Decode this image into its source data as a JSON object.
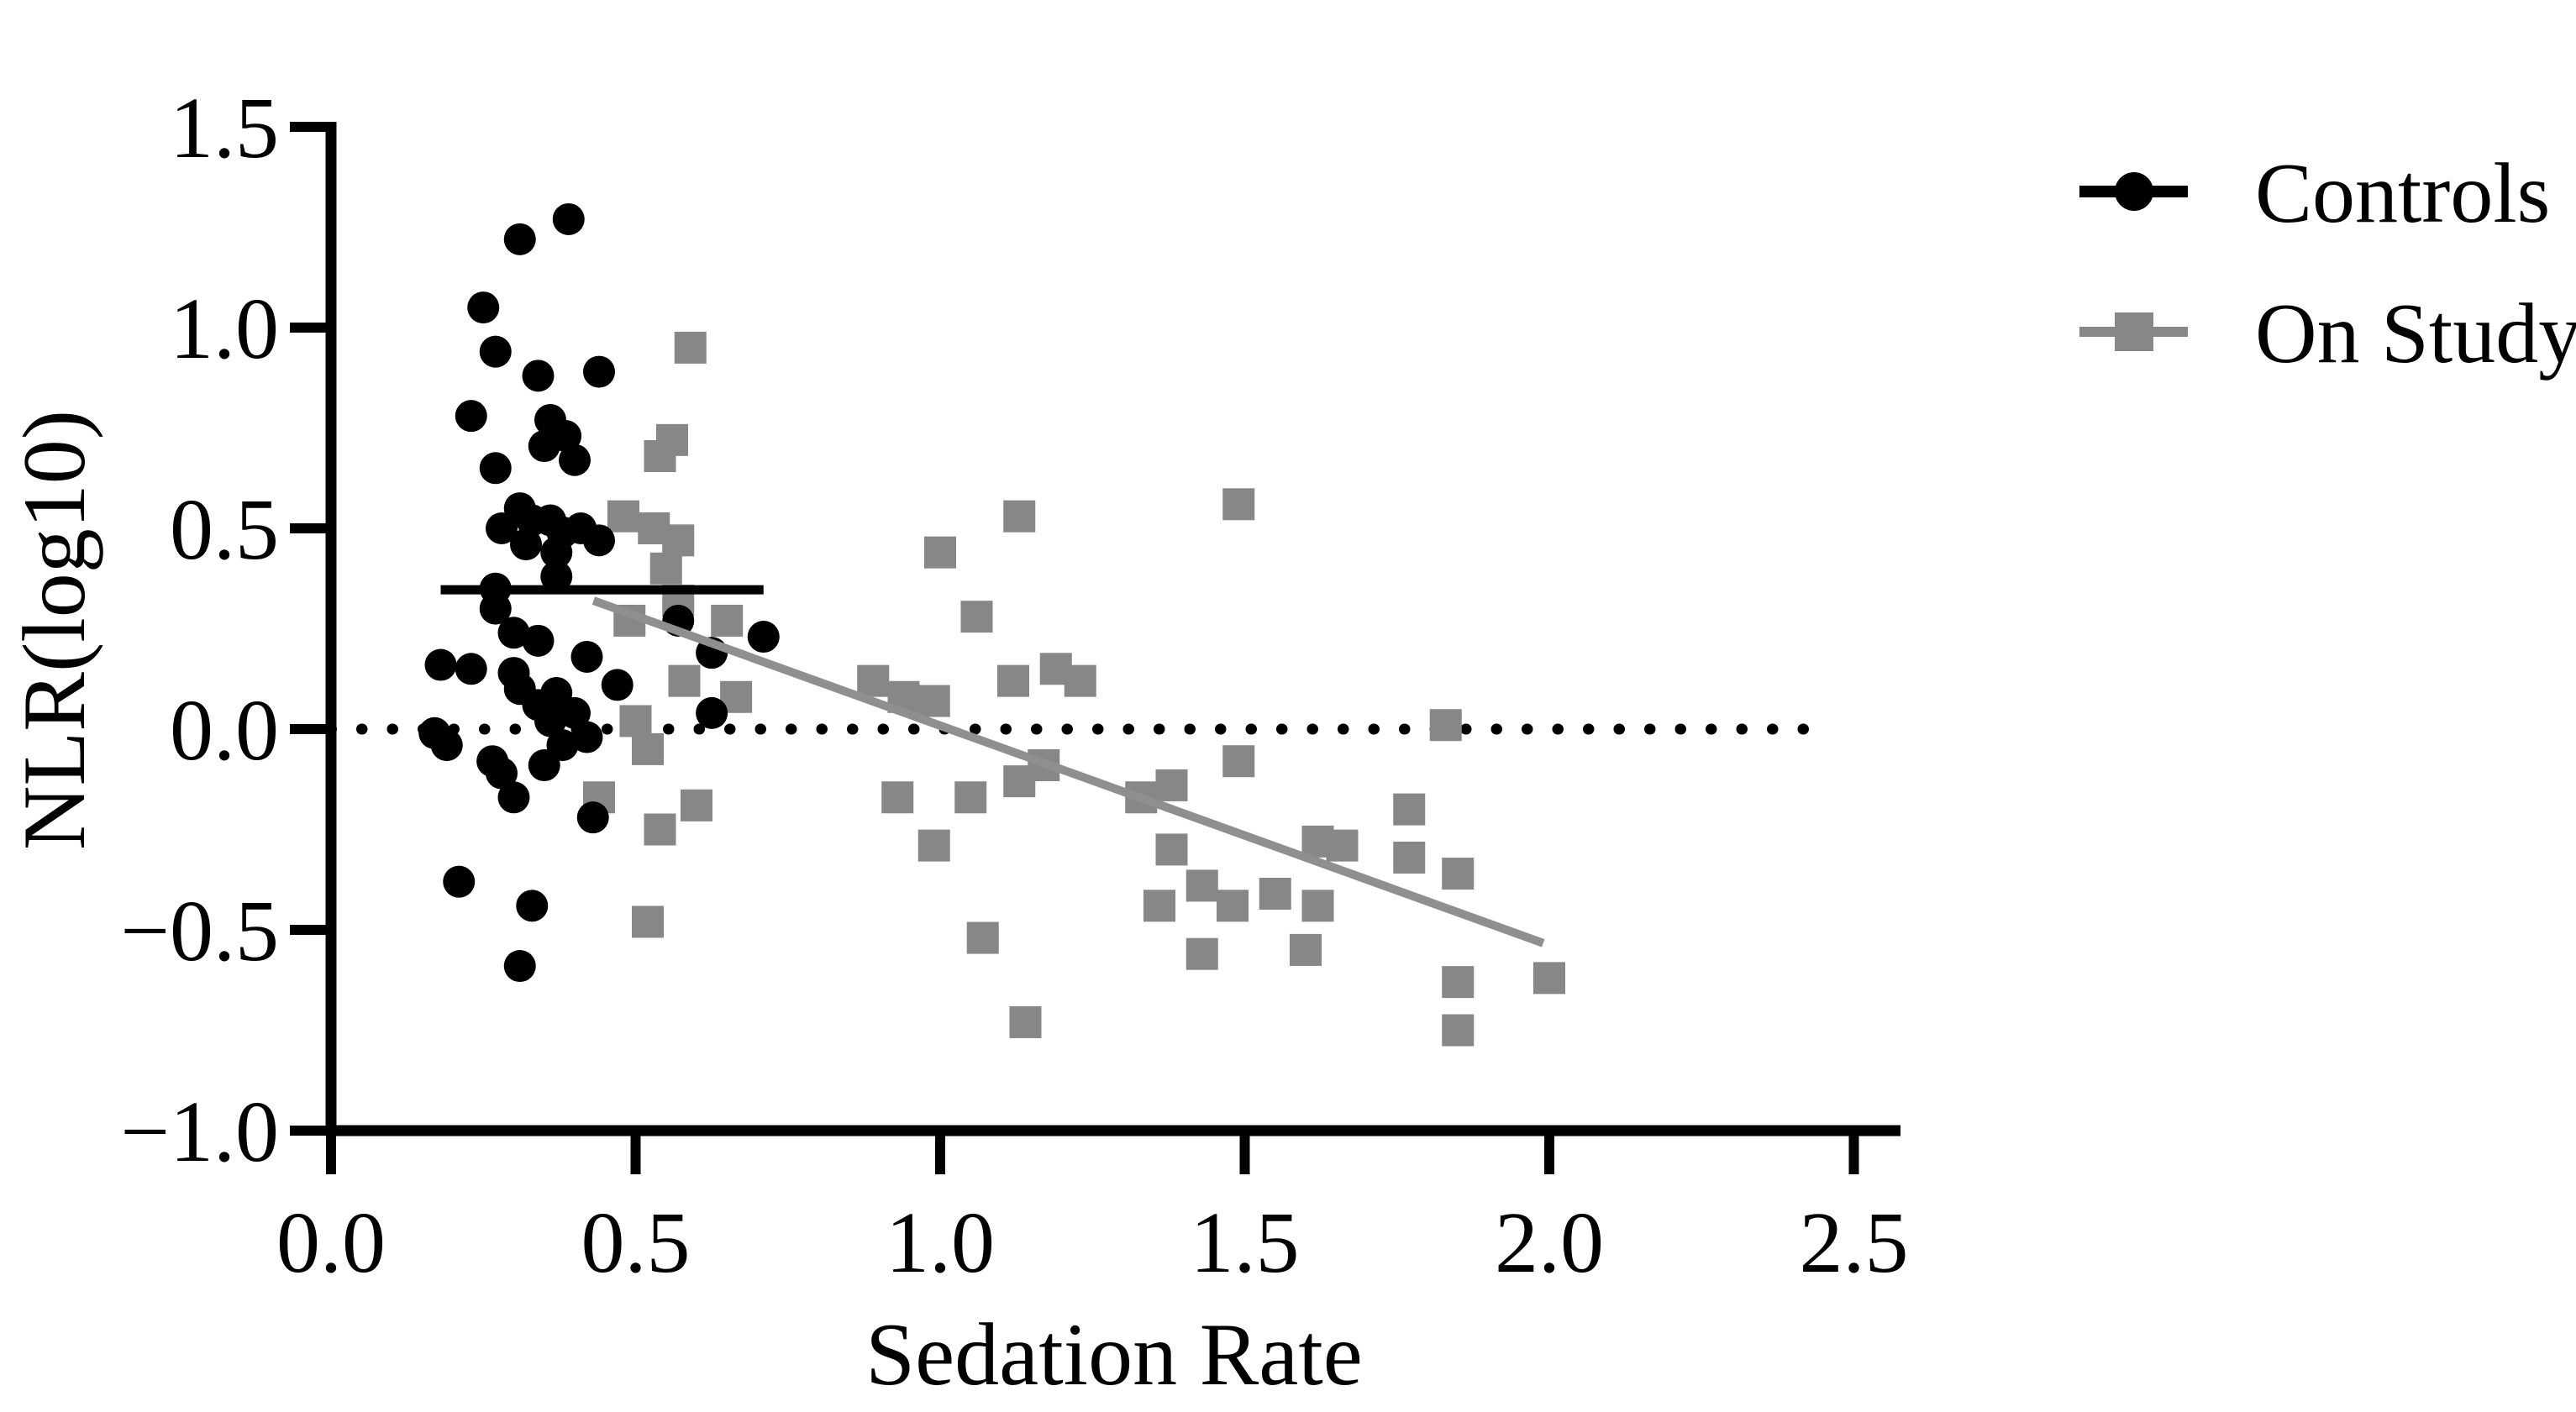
{
  "chart_data": {
    "type": "scatter",
    "title": "",
    "xlabel": "Sedation Rate",
    "ylabel": "NLR(log10)",
    "xlim": [
      0.0,
      2.5
    ],
    "ylim": [
      -1.0,
      1.5
    ],
    "grid": false,
    "legend_position": "top-right-outside",
    "x_tick_labels": [
      "0.0",
      "0.5",
      "1.0",
      "1.5",
      "2.0",
      "2.5"
    ],
    "x_tick_values": [
      0.0,
      0.5,
      1.0,
      1.5,
      2.0,
      2.5
    ],
    "y_tick_labels": [
      "−1.0",
      "−0.5",
      "0.0",
      "0.5",
      "1.0",
      "1.5"
    ],
    "y_tick_values": [
      -1.0,
      -0.5,
      0.0,
      0.5,
      1.0,
      1.5
    ],
    "colors": {
      "controls": "#000000",
      "on_study": "#878787",
      "trend_line": "#8f8f8f",
      "axis": "#000000"
    },
    "series": [
      {
        "name": "Controls",
        "marker": "circle",
        "color": "#000000",
        "points": [
          [
            0.39,
            1.27
          ],
          [
            0.31,
            1.22
          ],
          [
            0.25,
            1.05
          ],
          [
            0.27,
            0.94
          ],
          [
            0.34,
            0.88
          ],
          [
            0.44,
            0.89
          ],
          [
            0.23,
            0.78
          ],
          [
            0.36,
            0.77
          ],
          [
            0.385,
            0.73
          ],
          [
            0.35,
            0.705
          ],
          [
            0.4,
            0.67
          ],
          [
            0.27,
            0.65
          ],
          [
            0.31,
            0.55
          ],
          [
            0.33,
            0.52
          ],
          [
            0.36,
            0.52
          ],
          [
            0.28,
            0.5
          ],
          [
            0.38,
            0.49
          ],
          [
            0.41,
            0.5
          ],
          [
            0.44,
            0.47
          ],
          [
            0.32,
            0.46
          ],
          [
            0.37,
            0.44
          ],
          [
            0.37,
            0.38
          ],
          [
            0.27,
            0.35
          ],
          [
            0.27,
            0.3
          ],
          [
            0.3,
            0.24
          ],
          [
            0.34,
            0.22
          ],
          [
            0.42,
            0.18
          ],
          [
            0.18,
            0.16
          ],
          [
            0.23,
            0.15
          ],
          [
            0.3,
            0.14
          ],
          [
            0.47,
            0.11
          ],
          [
            0.57,
            0.27
          ],
          [
            0.625,
            0.19
          ],
          [
            0.71,
            0.23
          ],
          [
            0.625,
            0.04
          ],
          [
            0.31,
            0.1
          ],
          [
            0.34,
            0.06
          ],
          [
            0.37,
            0.09
          ],
          [
            0.36,
            0.02
          ],
          [
            0.4,
            0.04
          ],
          [
            0.42,
            -0.02
          ],
          [
            0.38,
            -0.04
          ],
          [
            0.17,
            -0.01
          ],
          [
            0.19,
            -0.04
          ],
          [
            0.265,
            -0.08
          ],
          [
            0.28,
            -0.11
          ],
          [
            0.35,
            -0.09
          ],
          [
            0.3,
            -0.17
          ],
          [
            0.43,
            -0.22
          ],
          [
            0.21,
            -0.38
          ],
          [
            0.33,
            -0.44
          ],
          [
            0.31,
            -0.59
          ]
        ]
      },
      {
        "name": "On Study",
        "marker": "square",
        "color": "#878787",
        "points": [
          [
            0.59,
            0.95
          ],
          [
            0.56,
            0.72
          ],
          [
            0.54,
            0.68
          ],
          [
            0.48,
            0.53
          ],
          [
            0.53,
            0.5
          ],
          [
            0.57,
            0.47
          ],
          [
            0.55,
            0.4
          ],
          [
            0.57,
            0.32
          ],
          [
            0.49,
            0.27
          ],
          [
            0.65,
            0.27
          ],
          [
            0.58,
            0.12
          ],
          [
            0.665,
            0.08
          ],
          [
            0.5,
            0.02
          ],
          [
            0.52,
            -0.05
          ],
          [
            0.44,
            -0.17
          ],
          [
            0.54,
            -0.25
          ],
          [
            0.6,
            -0.19
          ],
          [
            0.52,
            -0.48
          ],
          [
            0.89,
            0.12
          ],
          [
            0.94,
            0.08
          ],
          [
            0.99,
            0.07
          ],
          [
            1.0,
            0.44
          ],
          [
            1.06,
            0.28
          ],
          [
            1.13,
            0.53
          ],
          [
            1.12,
            0.12
          ],
          [
            1.19,
            0.15
          ],
          [
            1.23,
            0.12
          ],
          [
            1.17,
            -0.09
          ],
          [
            1.13,
            -0.13
          ],
          [
            0.93,
            -0.17
          ],
          [
            1.05,
            -0.17
          ],
          [
            0.99,
            -0.29
          ],
          [
            1.07,
            -0.52
          ],
          [
            1.14,
            -0.73
          ],
          [
            1.33,
            -0.17
          ],
          [
            1.38,
            -0.14
          ],
          [
            1.38,
            -0.3
          ],
          [
            1.36,
            -0.44
          ],
          [
            1.43,
            -0.39
          ],
          [
            1.48,
            -0.44
          ],
          [
            1.55,
            -0.41
          ],
          [
            1.43,
            -0.56
          ],
          [
            1.49,
            0.56
          ],
          [
            1.49,
            -0.08
          ],
          [
            1.6,
            -0.55
          ],
          [
            1.62,
            -0.28
          ],
          [
            1.66,
            -0.29
          ],
          [
            1.62,
            -0.44
          ],
          [
            1.77,
            -0.2
          ],
          [
            1.77,
            -0.32
          ],
          [
            1.83,
            0.01
          ],
          [
            1.85,
            -0.36
          ],
          [
            1.85,
            -0.63
          ],
          [
            1.85,
            -0.75
          ],
          [
            2.0,
            -0.62
          ]
        ]
      }
    ],
    "reference_lines": {
      "zero_dotted": {
        "y": 0.0,
        "x1": 0.0,
        "x2": 2.44,
        "style": "dotted",
        "color": "#000000"
      },
      "controls_mean": {
        "y": 0.347,
        "x1": 0.18,
        "x2": 0.71,
        "style": "solid",
        "color": "#000000"
      },
      "on_study_trend": {
        "x1": 0.431,
        "y1": 0.32,
        "x2": 1.99,
        "y2": -0.533,
        "style": "solid",
        "color": "#8f8f8f"
      }
    },
    "legend": [
      {
        "label": "Controls",
        "marker": "circle",
        "color": "#000000"
      },
      {
        "label": "On Study",
        "marker": "square",
        "color": "#878787"
      }
    ]
  }
}
